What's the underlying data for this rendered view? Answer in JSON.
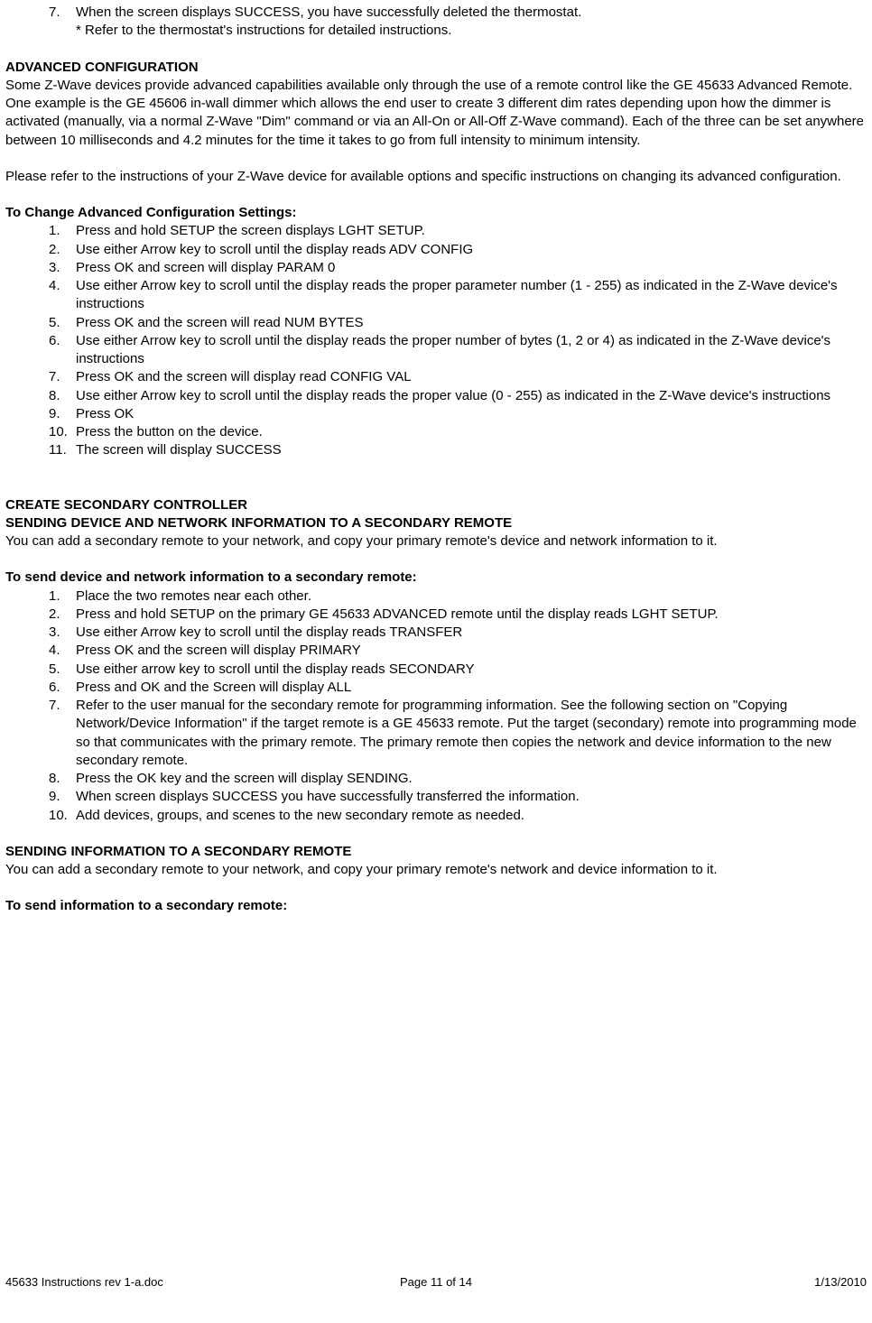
{
  "topList": {
    "item7": {
      "num": "7.",
      "text": "When the screen displays SUCCESS, you have successfully deleted the thermostat."
    },
    "note": "* Refer to the thermostat's instructions for detailed instructions."
  },
  "advConfig": {
    "heading": "ADVANCED CONFIGURATION",
    "para1": "Some Z-Wave devices provide advanced capabilities available only through the use of a remote control like the GE 45633 Advanced Remote.  One example is the GE 45606 in-wall dimmer which allows the end user to create 3 different dim rates depending upon how the dimmer is activated (manually, via a normal Z-Wave \"Dim\" command or via an All-On or All-Off Z-Wave command).  Each of the three can be set anywhere between 10 milliseconds and 4.2 minutes for the time it takes to go from full intensity to minimum intensity.",
    "para2": "Please refer to the instructions of your Z-Wave device for available options and specific instructions on changing its advanced configuration.",
    "subheading": "To Change Advanced Configuration Settings:",
    "items": {
      "i1": {
        "num": "1.",
        "text": "Press and hold SETUP the screen displays LGHT SETUP."
      },
      "i2": {
        "num": "2.",
        "text": "Use either Arrow key to scroll until the display reads ADV CONFIG"
      },
      "i3": {
        "num": "3.",
        "text": "Press OK and screen will display PARAM 0"
      },
      "i4": {
        "num": "4.",
        "text": "Use either Arrow key to scroll until the display reads the proper parameter number (1 - 255) as indicated in the Z-Wave device's instructions"
      },
      "i5": {
        "num": "5.",
        "text": "Press OK and the screen will read NUM BYTES"
      },
      "i6": {
        "num": "6.",
        "text": "Use either Arrow key to scroll until the display reads the proper number of bytes (1, 2 or 4) as indicated in the Z-Wave device's instructions"
      },
      "i7": {
        "num": "7.",
        "text": "Press OK and the screen will display read CONFIG VAL"
      },
      "i8": {
        "num": "8.",
        "text": "Use either Arrow key to scroll until the display reads the proper value (0 - 255) as indicated in the Z-Wave device's instructions"
      },
      "i9": {
        "num": "9.",
        "text": "Press OK"
      },
      "i10": {
        "num": "10.",
        "text": "Press the button on the device."
      },
      "i11": {
        "num": "11.",
        "text": "The screen will display SUCCESS"
      }
    }
  },
  "createSecondary": {
    "heading": "CREATE SECONDARY CONTROLLER",
    "subheading1": "SENDING DEVICE AND NETWORK INFORMATION TO A SECONDARY REMOTE",
    "para1": "You can add a secondary remote to your network, and copy your primary remote's device and network information to it.",
    "subheading2": "To send device and network information to a secondary remote:",
    "items": {
      "i1": {
        "num": "1.",
        "text": "Place the two remotes near each other."
      },
      "i2": {
        "num": "2.",
        "text": "Press and hold SETUP on the primary GE 45633 ADVANCED remote until the display reads LGHT SETUP."
      },
      "i3": {
        "num": "3.",
        "text": "Use either Arrow key to scroll until the display reads TRANSFER"
      },
      "i4": {
        "num": "4.",
        "text": "Press OK and the screen will display PRIMARY"
      },
      "i5": {
        "num": "5.",
        "text": "Use either arrow key to scroll until the display reads SECONDARY"
      },
      "i6": {
        "num": "6.",
        "text": "Press and OK and the Screen will display ALL"
      },
      "i7": {
        "num": "7.",
        "text": "Refer to the user manual for the secondary remote for programming information. See the following section on \"Copying Network/Device Information\" if the target remote is a GE 45633 remote.  Put the target (secondary) remote into programming mode so that communicates with the primary remote. The primary remote then copies the network and device information to the new secondary remote."
      },
      "i8": {
        "num": "8.",
        "text": "Press the OK key and the screen will display SENDING."
      },
      "i9": {
        "num": "9.",
        "text": "When screen displays SUCCESS you have successfully transferred the information."
      },
      "i10": {
        "num": "10.",
        "text": "Add devices, groups, and scenes to the new secondary remote as needed."
      }
    }
  },
  "sendingInfo": {
    "heading": "SENDING INFORMATION TO A SECONDARY REMOTE",
    "para1": "You can add a secondary remote to your network, and copy your primary remote's network and device information to it.",
    "subheading": "To send information to a secondary remote:"
  },
  "footer": {
    "left": "45633 Instructions rev 1-a.doc",
    "center": "Page 11 of 14",
    "right": "1/13/2010"
  }
}
